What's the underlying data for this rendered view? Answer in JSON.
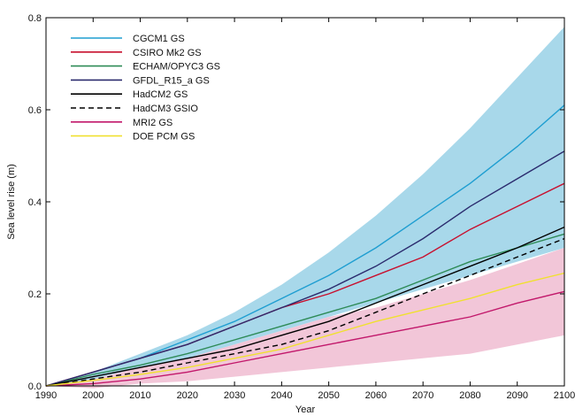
{
  "chart_data": {
    "type": "line",
    "title": "",
    "xlabel": "Year",
    "ylabel": "Sea level rise (m)",
    "xlim": [
      1990,
      2100
    ],
    "ylim": [
      0.0,
      0.8
    ],
    "x_ticks": [
      1990,
      2000,
      2010,
      2020,
      2030,
      2040,
      2050,
      2060,
      2070,
      2080,
      2090,
      2100
    ],
    "y_ticks": [
      "0.0",
      "0.2",
      "0.4",
      "0.6",
      "0.8"
    ],
    "y_tick_values": [
      0.0,
      0.2,
      0.4,
      0.6,
      0.8
    ],
    "grid": false,
    "legend_position": "top-left",
    "bands": [
      {
        "color": "#a8d8ea",
        "x": [
          1990,
          2000,
          2010,
          2020,
          2030,
          2040,
          2050,
          2060,
          2070,
          2080,
          2090,
          2100
        ],
        "upper": [
          0.0,
          0.03,
          0.07,
          0.11,
          0.16,
          0.22,
          0.29,
          0.37,
          0.46,
          0.56,
          0.67,
          0.78
        ],
        "lower": [
          0.0,
          0.01,
          0.03,
          0.06,
          0.09,
          0.12,
          0.15,
          0.18,
          0.21,
          0.24,
          0.27,
          0.3
        ]
      },
      {
        "color": "#f2c6d8",
        "x": [
          1990,
          2000,
          2010,
          2020,
          2030,
          2040,
          2050,
          2060,
          2070,
          2080,
          2090,
          2100
        ],
        "upper": [
          0.0,
          0.015,
          0.04,
          0.06,
          0.09,
          0.12,
          0.15,
          0.17,
          0.2,
          0.23,
          0.265,
          0.3
        ],
        "lower": [
          0.0,
          -0.005,
          0.005,
          0.01,
          0.02,
          0.03,
          0.04,
          0.05,
          0.06,
          0.07,
          0.09,
          0.11
        ]
      }
    ],
    "x": [
      1990,
      2000,
      2010,
      2020,
      2030,
      2040,
      2050,
      2060,
      2070,
      2080,
      2090,
      2100
    ],
    "series": [
      {
        "name": "CGCM1 GS",
        "color": "#1f9ed1",
        "dash": false,
        "values": [
          0.0,
          0.03,
          0.06,
          0.1,
          0.14,
          0.19,
          0.24,
          0.3,
          0.37,
          0.44,
          0.52,
          0.61
        ]
      },
      {
        "name": "CSIRO Mk2 GS",
        "color": "#c8102e",
        "dash": false,
        "values": [
          0.0,
          0.03,
          0.06,
          0.09,
          0.13,
          0.17,
          0.2,
          0.24,
          0.28,
          0.34,
          0.39,
          0.44
        ]
      },
      {
        "name": "ECHAM/OPYC3 GS",
        "color": "#2e8b57",
        "dash": false,
        "values": [
          0.0,
          0.025,
          0.045,
          0.07,
          0.1,
          0.13,
          0.16,
          0.19,
          0.23,
          0.27,
          0.3,
          0.33
        ]
      },
      {
        "name": "GFDL_R15_a GS",
        "color": "#2b2b6e",
        "dash": false,
        "values": [
          0.0,
          0.03,
          0.06,
          0.09,
          0.13,
          0.17,
          0.21,
          0.26,
          0.32,
          0.39,
          0.45,
          0.51
        ]
      },
      {
        "name": "HadCM2 GS",
        "color": "#000000",
        "dash": false,
        "values": [
          0.0,
          0.02,
          0.04,
          0.06,
          0.08,
          0.11,
          0.14,
          0.18,
          0.22,
          0.26,
          0.3,
          0.345
        ]
      },
      {
        "name": "HadCM3 GSIO",
        "color": "#000000",
        "dash": true,
        "values": [
          0.0,
          0.015,
          0.03,
          0.05,
          0.07,
          0.09,
          0.12,
          0.16,
          0.2,
          0.24,
          0.28,
          0.32
        ]
      },
      {
        "name": "MRI2 GS",
        "color": "#c2186b",
        "dash": false,
        "values": [
          0.0,
          0.005,
          0.015,
          0.03,
          0.05,
          0.07,
          0.09,
          0.11,
          0.13,
          0.15,
          0.18,
          0.205
        ]
      },
      {
        "name": "DOE PCM GS",
        "color": "#f0e030",
        "dash": false,
        "values": [
          0.0,
          0.012,
          0.025,
          0.04,
          0.06,
          0.08,
          0.11,
          0.14,
          0.165,
          0.19,
          0.22,
          0.245
        ]
      }
    ]
  }
}
